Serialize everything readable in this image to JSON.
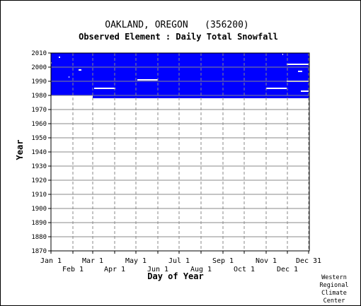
{
  "chart_data": {
    "type": "heatmap",
    "title": "OAKLAND, OREGON   (356200)",
    "subtitle": "Observed Element : Daily Total Snowfall",
    "xlabel": "Day of Year",
    "ylabel": "Year",
    "ylim": [
      1870,
      2010
    ],
    "ytick_values": [
      1870,
      1880,
      1890,
      1900,
      1910,
      1920,
      1930,
      1940,
      1950,
      1960,
      1970,
      1980,
      1990,
      2000,
      2010
    ],
    "xtick_days": [
      1,
      32,
      60,
      91,
      121,
      152,
      182,
      213,
      244,
      274,
      305,
      335,
      365
    ],
    "xtick_labels": [
      "Jan 1",
      "Feb 1",
      "Mar 1",
      "Apr 1",
      "May 1",
      "Jun 1",
      "Jul 1",
      "Aug 1",
      "Sep 1",
      "Oct 1",
      "Nov 1",
      "Dec 1",
      "Dec 31"
    ],
    "grid": true,
    "data_color": "#0000ff",
    "missing_color": "#ffffff",
    "data_blocks": [
      {
        "day_start": 1,
        "day_end": 366,
        "year_start": 1980,
        "year_end": 2010
      },
      {
        "day_start": 60,
        "day_end": 366,
        "year_start": 1978,
        "year_end": 1980
      }
    ],
    "missing_segments": [
      {
        "year": 2007,
        "day_start": 12,
        "day_end": 14
      },
      {
        "year": 2003,
        "day_start": 1,
        "day_end": 2
      },
      {
        "year": 1998,
        "day_start": 40,
        "day_end": 44
      },
      {
        "year": 1993,
        "day_start": 26,
        "day_end": 27
      },
      {
        "year": 1985,
        "day_start": 62,
        "day_end": 92
      },
      {
        "year": 1991,
        "day_start": 123,
        "day_end": 152
      },
      {
        "year": 1985,
        "day_start": 305,
        "day_end": 334
      },
      {
        "year": 2002,
        "day_start": 334,
        "day_end": 365
      },
      {
        "year": 1990,
        "day_start": 334,
        "day_end": 365
      },
      {
        "year": 1997,
        "day_start": 350,
        "day_end": 356
      },
      {
        "year": 1983,
        "day_start": 354,
        "day_end": 365
      },
      {
        "year": 2009,
        "day_start": 328,
        "day_end": 329
      }
    ]
  },
  "credit": "Western\nRegional\nClimate\nCenter"
}
